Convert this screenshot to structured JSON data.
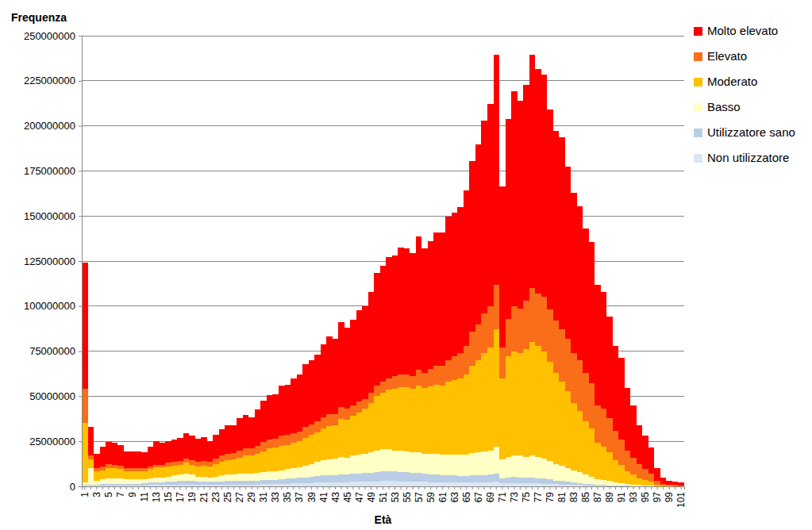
{
  "chart_data": {
    "type": "bar",
    "stacked": true,
    "x_label": "Età",
    "y_label": "Frequenza",
    "categories": [
      "1",
      null,
      "3",
      null,
      "5",
      null,
      "7",
      null,
      "9",
      null,
      "11",
      null,
      "13",
      null,
      "15",
      null,
      "17",
      null,
      "19",
      null,
      "21",
      null,
      "23",
      null,
      "25",
      null,
      "27",
      null,
      "29",
      null,
      "31",
      null,
      "33",
      null,
      "35",
      null,
      "37",
      null,
      "39",
      null,
      "41",
      null,
      "43",
      null,
      "45",
      null,
      "47",
      null,
      "49",
      null,
      "51",
      null,
      "53",
      null,
      "55",
      null,
      "57",
      null,
      "59",
      null,
      "61",
      null,
      "63",
      null,
      "65",
      null,
      "67",
      null,
      "69",
      null,
      "71",
      null,
      "73",
      null,
      "75",
      null,
      "77",
      null,
      "79",
      null,
      "81",
      null,
      "83",
      null,
      "85",
      null,
      "87",
      null,
      "89",
      null,
      "91",
      null,
      "93",
      null,
      "95",
      null,
      "97",
      null,
      "99",
      null,
      "101"
    ],
    "ylim": [
      0,
      250000000
    ],
    "yticks": [
      0,
      25000000,
      50000000,
      75000000,
      100000000,
      125000000,
      150000000,
      175000000,
      200000000,
      225000000,
      250000000
    ],
    "grid": true,
    "legend": "right",
    "series": [
      {
        "name": "Non utilizzatore",
        "color": "#dce6f2",
        "values": [
          300000,
          400000,
          400000,
          400000,
          500000,
          500000,
          500000,
          500000,
          500000,
          500000,
          600000,
          700000,
          800000,
          800000,
          900000,
          900000,
          1000000,
          1100000,
          1000000,
          900000,
          900000,
          900000,
          900000,
          1000000,
          1000000,
          1000000,
          1100000,
          1100000,
          1100000,
          1100000,
          1200000,
          1300000,
          1300000,
          1400000,
          1500000,
          1600000,
          1600000,
          1800000,
          1900000,
          2000000,
          2100000,
          2200000,
          2200000,
          2400000,
          2300000,
          2500000,
          2500000,
          2600000,
          2700000,
          2800000,
          2900000,
          2900000,
          2900000,
          2800000,
          2700000,
          2600000,
          2600000,
          2500000,
          2400000,
          2300000,
          2200000,
          2200000,
          2100000,
          2000000,
          2000000,
          2100000,
          2200000,
          2200000,
          2200000,
          2500000,
          1600000,
          1800000,
          1800000,
          1800000,
          1700000,
          1800000,
          1600000,
          1500000,
          1300000,
          1200000,
          1100000,
          900000,
          800000,
          700000,
          500000,
          500000,
          300000,
          300000,
          200000,
          200000,
          150000,
          100000,
          80000,
          50000,
          40000,
          30000,
          15000,
          8000,
          5000,
          4000,
          3000
        ]
      },
      {
        "name": "Utilizzatore sano",
        "color": "#b9cde5",
        "values": [
          500000,
          600000,
          600000,
          800000,
          1000000,
          1000000,
          1000000,
          1000000,
          1000000,
          1000000,
          1100000,
          1300000,
          1400000,
          1500000,
          1600000,
          1800000,
          2000000,
          2100000,
          2000000,
          1800000,
          1800000,
          1600000,
          1800000,
          1800000,
          2000000,
          2000000,
          2200000,
          2100000,
          2100000,
          2200000,
          2300000,
          2400000,
          2400000,
          2600000,
          2700000,
          2900000,
          3100000,
          3200000,
          3400000,
          3600000,
          3900000,
          4100000,
          4100000,
          4400000,
          4400000,
          4500000,
          4700000,
          4900000,
          5000000,
          5200000,
          5300000,
          5400000,
          5300000,
          5200000,
          5100000,
          4900000,
          4900000,
          4500000,
          4400000,
          4300000,
          4100000,
          4000000,
          3900000,
          3800000,
          3800000,
          3900000,
          4000000,
          4100000,
          4200000,
          4500000,
          2900000,
          3200000,
          3400000,
          3200000,
          3100000,
          3200000,
          3000000,
          2700000,
          2500000,
          2100000,
          1900000,
          1700000,
          1400000,
          1200000,
          1000000,
          800000,
          600000,
          500000,
          400000,
          300000,
          250000,
          200000,
          120000,
          100000,
          60000,
          50000,
          25000,
          12000,
          10000,
          6000,
          5000
        ]
      },
      {
        "name": "Basso",
        "color": "#ffffc6",
        "values": [
          1200000,
          9000000,
          2000000,
          2800000,
          3000000,
          3000000,
          3000000,
          2500000,
          2500000,
          2500000,
          2300000,
          2500000,
          2800000,
          2700000,
          3000000,
          3300000,
          3500000,
          3800000,
          3500000,
          2800000,
          2800000,
          2500000,
          2800000,
          3200000,
          3500000,
          3500000,
          3700000,
          3800000,
          3800000,
          4200000,
          4500000,
          4800000,
          4800000,
          5000000,
          5300000,
          5500000,
          5800000,
          6500000,
          7200000,
          7900000,
          8500000,
          8700000,
          9200000,
          9700000,
          9300000,
          10000000,
          10300000,
          10500000,
          11300000,
          12000000,
          12300000,
          12200000,
          11800000,
          12000000,
          11700000,
          11500000,
          11500000,
          11000000,
          11200000,
          11400000,
          11200000,
          11300000,
          11500000,
          11700000,
          11700000,
          12500000,
          12800000,
          13200000,
          13600000,
          15000000,
          10500000,
          11500000,
          11800000,
          12000000,
          11700000,
          12000000,
          11900000,
          11300000,
          10200000,
          9200000,
          8500000,
          7400000,
          6800000,
          6100000,
          5000000,
          4200000,
          3100000,
          2700000,
          2400000,
          1800000,
          1400000,
          1000000,
          800000,
          550000,
          400000,
          320000,
          160000,
          80000,
          65000,
          40000,
          32000
        ]
      },
      {
        "name": "Moderato",
        "color": "#ffc000",
        "values": [
          33000000,
          5000000,
          5500000,
          5000000,
          5500000,
          5500000,
          5000000,
          4500000,
          4500000,
          4500000,
          4500000,
          5000000,
          5500000,
          5500000,
          5500000,
          5500000,
          5500000,
          6000000,
          5500000,
          5500000,
          6000000,
          6000000,
          7000000,
          7500000,
          8000000,
          8500000,
          9000000,
          10000000,
          10000000,
          10500000,
          11500000,
          12500000,
          13000000,
          13500000,
          13500000,
          14000000,
          14500000,
          15500000,
          16000000,
          16500000,
          17500000,
          18500000,
          18500000,
          21000000,
          21000000,
          22000000,
          23500000,
          25000000,
          27000000,
          30000000,
          31500000,
          33000000,
          34000000,
          35000000,
          35500000,
          35000000,
          37000000,
          36500000,
          37500000,
          38500000,
          38500000,
          40500000,
          41500000,
          42500000,
          44500000,
          48500000,
          51000000,
          54500000,
          57000000,
          65000000,
          45000000,
          55500000,
          58000000,
          57000000,
          59500000,
          63000000,
          61500000,
          59500000,
          55000000,
          50500000,
          46500000,
          43000000,
          37000000,
          34000000,
          29500000,
          26500000,
          20000000,
          18500000,
          16000000,
          12200000,
          10200000,
          7200000,
          5500000,
          3800000,
          3000000,
          2100000,
          800000,
          400000,
          220000,
          150000,
          110000
        ]
      },
      {
        "name": "Elevato",
        "color": "#fa6e19",
        "values": [
          19000000,
          2000000,
          1500000,
          2000000,
          2500000,
          2000000,
          2000000,
          1500000,
          1500000,
          1500000,
          1500000,
          1500000,
          1500000,
          1500000,
          2000000,
          2000000,
          2000000,
          2500000,
          2500000,
          2500000,
          2500000,
          2500000,
          3000000,
          3500000,
          3500000,
          3500000,
          4000000,
          4000000,
          4000000,
          4500000,
          5000000,
          5000000,
          5000000,
          5500000,
          5500000,
          5500000,
          5500000,
          6000000,
          6000000,
          6000000,
          6500000,
          6500000,
          6000000,
          6500000,
          6000000,
          6000000,
          6000000,
          5500000,
          6000000,
          6000000,
          6000000,
          6500000,
          7000000,
          7000000,
          7000000,
          7000000,
          8500000,
          8500000,
          9500000,
          10500000,
          11000000,
          12000000,
          13000000,
          14000000,
          16000000,
          19000000,
          20000000,
          22000000,
          23000000,
          25000000,
          17000000,
          21000000,
          25000000,
          24500000,
          27000000,
          30000000,
          29000000,
          30000000,
          29000000,
          29000000,
          29000000,
          29000000,
          28000000,
          28000000,
          27000000,
          25000000,
          21000000,
          21000000,
          19000000,
          16500000,
          14000000,
          11500000,
          9500000,
          8000000,
          6000000,
          4500000,
          2000000,
          1000000,
          700000,
          600000,
          450000
        ]
      },
      {
        "name": "Molto elevato",
        "color": "#ff0000",
        "values": [
          70000000,
          16000000,
          8000000,
          11000000,
          12000000,
          12000000,
          11500000,
          9500000,
          9500000,
          9500000,
          9000000,
          11000000,
          13000000,
          12000000,
          12000000,
          12500000,
          13000000,
          14000000,
          13500000,
          13000000,
          13500000,
          11500000,
          13000000,
          14500000,
          16000000,
          15500000,
          18000000,
          18500000,
          17500000,
          20000000,
          23000000,
          24500000,
          24500000,
          28000000,
          28000000,
          30500000,
          31500000,
          35000000,
          35500000,
          37000000,
          40500000,
          43000000,
          42000000,
          47000000,
          45000000,
          47500000,
          50500000,
          51500000,
          56000000,
          62500000,
          64500000,
          67000000,
          67000000,
          70500000,
          70000000,
          68500000,
          74000000,
          69000000,
          71000000,
          74000000,
          74000000,
          79500000,
          80000000,
          81000000,
          86000000,
          94500000,
          99500000,
          107000000,
          112000000,
          127500000,
          89500000,
          111000000,
          119000000,
          115500000,
          119500000,
          129500000,
          124500000,
          123500000,
          111000000,
          105000000,
          106500000,
          95500000,
          89000000,
          85500000,
          80000000,
          78500000,
          67000000,
          65000000,
          56000000,
          47000000,
          45500000,
          34500000,
          29000000,
          21500000,
          18500000,
          14500000,
          7000000,
          3500000,
          2000000,
          1700000,
          1400000
        ]
      }
    ]
  }
}
